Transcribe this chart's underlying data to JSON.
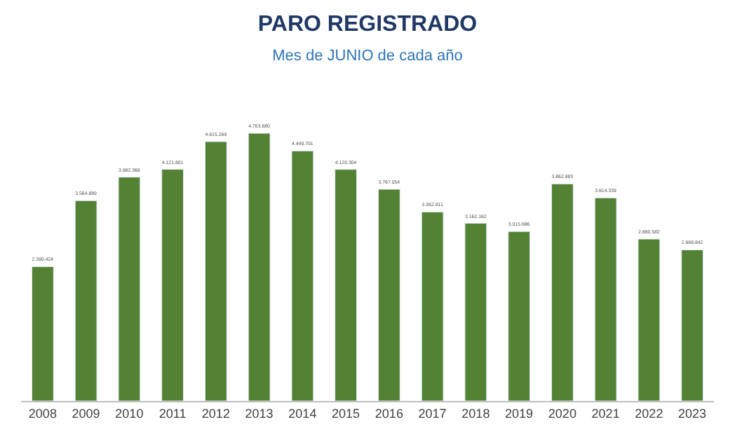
{
  "chart_data": {
    "type": "bar",
    "title": "PARO REGISTRADO",
    "subtitle": "Mes de JUNIO de cada año",
    "categories": [
      "2008",
      "2009",
      "2010",
      "2011",
      "2012",
      "2013",
      "2014",
      "2015",
      "2016",
      "2017",
      "2018",
      "2019",
      "2020",
      "2021",
      "2022",
      "2023"
    ],
    "values": [
      2390424,
      3564889,
      3982368,
      4121801,
      4615269,
      4763680,
      4449701,
      4120304,
      3767054,
      3362811,
      3162162,
      3015686,
      3862883,
      3614339,
      2880582,
      2688842
    ],
    "value_labels": [
      "2.390.424",
      "3.564.889",
      "3.982.368",
      "4.121.801",
      "4.615.269",
      "4.763.680",
      "4.449.701",
      "4.120.304",
      "3.767.054",
      "3.362.811",
      "3.162.162",
      "3.015.686",
      "3.862.883",
      "3.614.339",
      "2.880.582",
      "2.688.842"
    ],
    "color": "#548235",
    "tick_labels": "x",
    "legend": false
  }
}
